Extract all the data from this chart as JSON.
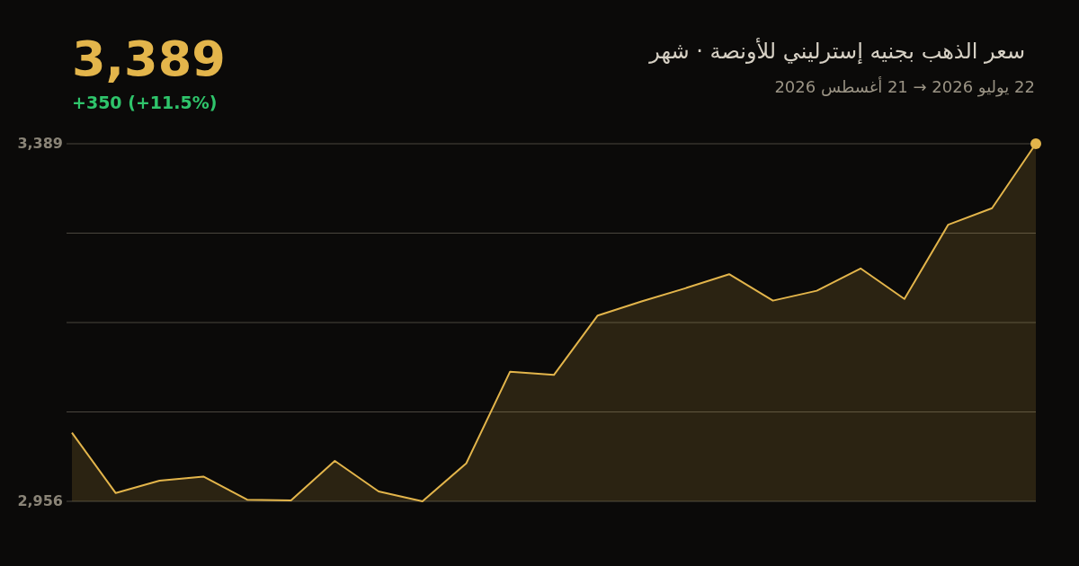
{
  "chart_data": {
    "type": "area",
    "title": "سعر الذهب     بجنيه     إسترليني     للأونصة · شهر",
    "subtitle": "22 يوليو 2026 → 21 أغسطس 2026",
    "annotations": [
      "3,389",
      "+350 (+11.5%)"
    ],
    "categories": [
      null,
      null,
      null,
      null,
      null,
      null,
      null,
      null,
      null,
      null,
      null,
      null,
      null,
      null,
      null,
      null,
      null,
      null,
      null,
      null,
      null,
      null,
      null
    ],
    "series": [
      {
        "color": "#e3b54b",
        "values": [
          3039,
          2966,
          2981,
          2986,
          2958,
          2957,
          3005,
          2968,
          2956,
          3002,
          3113,
          3109,
          3181,
          3198,
          3214,
          3231,
          3199,
          3211,
          3238,
          3201,
          3291,
          3311,
          3389
        ]
      },
      {
        "type": "scatter",
        "marker": "circle",
        "color": "#e3b54b",
        "values": [
          null,
          null,
          null,
          null,
          null,
          null,
          null,
          null,
          null,
          null,
          null,
          null,
          null,
          null,
          null,
          null,
          null,
          null,
          null,
          null,
          null,
          null,
          3389
        ]
      }
    ],
    "ylim": [
      2956,
      3389
    ],
    "yticks": [
      {
        "value": 2956,
        "label": "2,956"
      },
      {
        "value": 3064.25,
        "label": null
      },
      {
        "value": 3172.5,
        "label": null
      },
      {
        "value": 3280.75,
        "label": null
      },
      {
        "value": 3389,
        "label": "3,389"
      }
    ],
    "grid": "y",
    "tick_labels": "y",
    "marker": "none"
  }
}
